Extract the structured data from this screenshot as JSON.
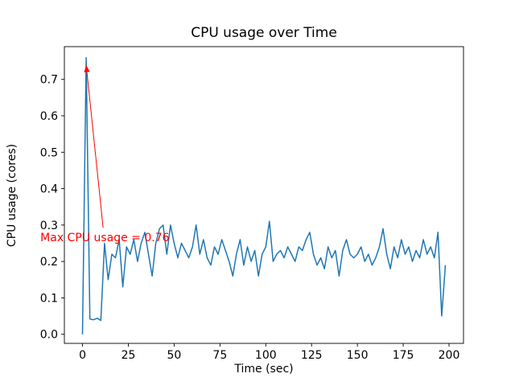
{
  "chart_data": {
    "type": "line",
    "title": "CPU usage over Time",
    "xlabel": "Time (sec)",
    "ylabel": "CPU usage (cores)",
    "grid": false,
    "legend": null,
    "xlim": [
      -9.9,
      207.9
    ],
    "ylim": [
      -0.025,
      0.79
    ],
    "xticks": [
      0,
      25,
      50,
      75,
      100,
      125,
      150,
      175,
      200
    ],
    "yticks": [
      0.0,
      0.1,
      0.2,
      0.3,
      0.4,
      0.5,
      0.6,
      0.7
    ],
    "x": [
      0,
      2,
      4,
      6,
      8,
      10,
      12,
      14,
      16,
      18,
      20,
      22,
      24,
      26,
      28,
      30,
      32,
      34,
      36,
      38,
      40,
      42,
      44,
      46,
      48,
      50,
      52,
      54,
      56,
      58,
      60,
      62,
      64,
      66,
      68,
      70,
      72,
      74,
      76,
      78,
      80,
      82,
      84,
      86,
      88,
      90,
      92,
      94,
      96,
      98,
      100,
      102,
      104,
      106,
      108,
      110,
      112,
      114,
      116,
      118,
      120,
      122,
      124,
      126,
      128,
      130,
      132,
      134,
      136,
      138,
      140,
      142,
      144,
      146,
      148,
      150,
      152,
      154,
      156,
      158,
      160,
      162,
      164,
      166,
      168,
      170,
      172,
      174,
      176,
      178,
      180,
      182,
      184,
      186,
      188,
      190,
      192,
      194,
      196,
      198
    ],
    "series": [
      {
        "name": "CPU usage",
        "color": "#1f77b4",
        "values": [
          0.0,
          0.76,
          0.042,
          0.04,
          0.044,
          0.038,
          0.25,
          0.15,
          0.22,
          0.21,
          0.26,
          0.13,
          0.24,
          0.22,
          0.26,
          0.2,
          0.25,
          0.28,
          0.22,
          0.16,
          0.25,
          0.29,
          0.3,
          0.22,
          0.3,
          0.25,
          0.21,
          0.25,
          0.23,
          0.21,
          0.24,
          0.3,
          0.22,
          0.26,
          0.21,
          0.19,
          0.24,
          0.22,
          0.26,
          0.23,
          0.2,
          0.16,
          0.22,
          0.26,
          0.19,
          0.24,
          0.2,
          0.23,
          0.16,
          0.22,
          0.24,
          0.31,
          0.2,
          0.22,
          0.23,
          0.21,
          0.24,
          0.22,
          0.2,
          0.24,
          0.23,
          0.26,
          0.28,
          0.22,
          0.19,
          0.21,
          0.18,
          0.24,
          0.21,
          0.23,
          0.16,
          0.23,
          0.26,
          0.22,
          0.21,
          0.22,
          0.24,
          0.2,
          0.22,
          0.19,
          0.21,
          0.24,
          0.29,
          0.22,
          0.18,
          0.24,
          0.21,
          0.26,
          0.22,
          0.24,
          0.2,
          0.23,
          0.21,
          0.26,
          0.22,
          0.24,
          0.21,
          0.28,
          0.05,
          0.19
        ]
      }
    ],
    "annotation": {
      "text": "Max CPU usage = 0.76",
      "color": "#ff0000",
      "xy": [
        2,
        0.74
      ],
      "text_xy": [
        -23,
        0.266
      ]
    }
  }
}
